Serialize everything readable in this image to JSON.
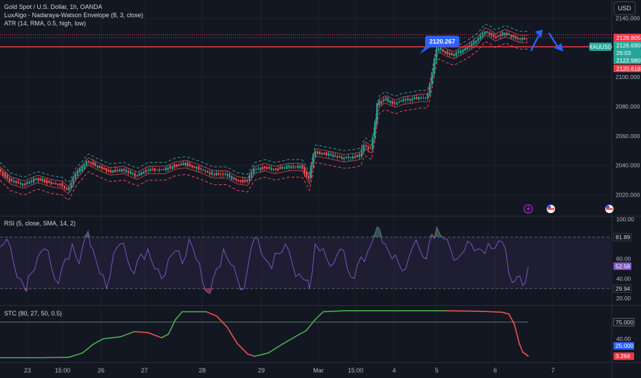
{
  "colors": {
    "background": "#131722",
    "grid": "#1e222d",
    "axis_text": "#b2b5be",
    "up": "#26a69a",
    "down": "#ef5350",
    "envelope_upper": "#26a69a",
    "envelope_lower": "#ef5350",
    "atr_band": "#ef5350",
    "rsi_line": "#7e57c2",
    "stc_up": "#4caf50",
    "stc_down": "#ef5350",
    "arrow": "#2962ff"
  },
  "header": {
    "title": "Gold Spot / U.S. Dollar, 1h, OANDA",
    "indicator_1": "LuxAlgo - Nadaraya-Watson Envelope (8, 3, close)",
    "indicator_2": "ATR (14, RMA, 0.5, high, low)"
  },
  "currency_button": "USD",
  "chart_data": [
    {
      "type": "candlestick",
      "symbol": "XAUUSD",
      "yaxis": {
        "min": 2010,
        "max": 2150,
        "ticks": [
          2020,
          2040,
          2060,
          2080,
          2100,
          2120,
          2140
        ],
        "tick_labels": [
          "2020.000",
          "2040.000",
          "2060.000",
          "2080.000",
          "2100.000",
          "2120.000",
          "2140.000"
        ]
      },
      "price_labels": [
        {
          "label": "2128.805",
          "value": 2128.805,
          "kind": "upper"
        },
        {
          "label": "2126.690",
          "value": 2126.69,
          "kind": "last"
        },
        {
          "label": "26:03",
          "value": 2124.2,
          "kind": "countdown"
        },
        {
          "label": "2122.980",
          "value": 2122.98,
          "kind": "lower"
        },
        {
          "label": "2120.618",
          "value": 2120.618,
          "kind": "line"
        }
      ],
      "symbol_tag": "XAUUSD",
      "horizontal_line": 2120.618,
      "annotation": {
        "text": "2120.267",
        "value": 2120.267
      },
      "path": [
        [
          0,
          2037
        ],
        [
          15,
          2030
        ],
        [
          35,
          2027
        ],
        [
          55,
          2031
        ],
        [
          75,
          2028
        ],
        [
          90,
          2027
        ],
        [
          100,
          2023
        ],
        [
          110,
          2033
        ],
        [
          120,
          2038
        ],
        [
          128,
          2043
        ],
        [
          140,
          2040
        ],
        [
          160,
          2036
        ],
        [
          180,
          2037
        ],
        [
          200,
          2033
        ],
        [
          215,
          2037
        ],
        [
          240,
          2037
        ],
        [
          255,
          2040
        ],
        [
          270,
          2041
        ],
        [
          290,
          2038
        ],
        [
          310,
          2034
        ],
        [
          330,
          2034
        ],
        [
          345,
          2030
        ],
        [
          360,
          2029
        ],
        [
          370,
          2037
        ],
        [
          385,
          2039
        ],
        [
          400,
          2037
        ],
        [
          420,
          2039
        ],
        [
          440,
          2039
        ],
        [
          450,
          2030
        ],
        [
          458,
          2049
        ],
        [
          470,
          2048
        ],
        [
          480,
          2047
        ],
        [
          500,
          2045
        ],
        [
          518,
          2046
        ],
        [
          525,
          2047
        ],
        [
          530,
          2054
        ],
        [
          540,
          2051
        ],
        [
          545,
          2062
        ],
        [
          550,
          2082
        ],
        [
          560,
          2085
        ],
        [
          575,
          2082
        ],
        [
          585,
          2084
        ],
        [
          600,
          2085
        ],
        [
          612,
          2086
        ],
        [
          622,
          2086
        ],
        [
          628,
          2098
        ],
        [
          633,
          2112
        ],
        [
          637,
          2120
        ],
        [
          648,
          2117
        ],
        [
          660,
          2115
        ],
        [
          680,
          2120
        ],
        [
          695,
          2125
        ],
        [
          705,
          2131
        ],
        [
          712,
          2130
        ],
        [
          720,
          2127
        ],
        [
          735,
          2130
        ],
        [
          745,
          2128
        ],
        [
          755,
          2126
        ],
        [
          768,
          2126
        ]
      ]
    },
    {
      "type": "line",
      "name": "RSI (5, close, SMA, 14, 2)",
      "yaxis": {
        "min": 16,
        "max": 102,
        "ticks": [
          20,
          40,
          60,
          100
        ],
        "tick_labels": [
          "20.00",
          "40.00",
          "60.00",
          "100.00"
        ]
      },
      "levels": [
        29.94,
        81.89
      ],
      "value_labels": [
        {
          "label": "81.89",
          "value": 81.89
        },
        {
          "label": "52.58",
          "value": 52.58,
          "kind": "last"
        },
        {
          "label": "29.94",
          "value": 29.94
        }
      ],
      "x": [
        0,
        10,
        20,
        30,
        38,
        45,
        55,
        65,
        75,
        85,
        95,
        105,
        115,
        128,
        135,
        145,
        155,
        165,
        175,
        185,
        195,
        205,
        215,
        225,
        235,
        245,
        255,
        265,
        275,
        285,
        295,
        305,
        315,
        325,
        335,
        345,
        355,
        365,
        375,
        385,
        395,
        405,
        415,
        425,
        435,
        445,
        450,
        458,
        465,
        475,
        485,
        495,
        505,
        515,
        525,
        535,
        545,
        552,
        560,
        570,
        580,
        590,
        600,
        610,
        620,
        628,
        635,
        645,
        655,
        665,
        675,
        685,
        695,
        705,
        715,
        725,
        735,
        745,
        752,
        760,
        768
      ],
      "values": [
        72,
        80,
        55,
        40,
        27,
        45,
        62,
        70,
        50,
        35,
        60,
        75,
        55,
        88,
        70,
        45,
        30,
        65,
        75,
        60,
        45,
        65,
        70,
        50,
        40,
        60,
        68,
        55,
        80,
        60,
        35,
        25,
        50,
        70,
        55,
        40,
        30,
        70,
        80,
        60,
        50,
        65,
        75,
        55,
        45,
        38,
        30,
        75,
        68,
        60,
        55,
        70,
        50,
        40,
        62,
        68,
        85,
        90,
        75,
        60,
        55,
        50,
        72,
        70,
        60,
        85,
        92,
        80,
        70,
        60,
        68,
        75,
        70,
        65,
        70,
        78,
        70,
        36,
        42,
        33,
        52.58
      ]
    },
    {
      "type": "line",
      "name": "STC (80, 27, 50, 0.5)",
      "yaxis": {
        "min": -8,
        "max": 108,
        "ticks": [
          40
        ],
        "tick_labels": [
          "40.00"
        ]
      },
      "level": 75,
      "value_labels": [
        {
          "label": "75.000",
          "value": 75
        },
        {
          "label": "25.000",
          "value": 25
        },
        {
          "label": "3.264",
          "value": 3.264,
          "kind": "last"
        }
      ],
      "x": [
        0,
        60,
        100,
        120,
        135,
        150,
        175,
        195,
        215,
        235,
        245,
        255,
        265,
        300,
        315,
        330,
        345,
        360,
        370,
        390,
        410,
        430,
        445,
        458,
        470,
        500,
        550,
        600,
        650,
        700,
        730,
        740,
        748,
        755,
        760,
        768
      ],
      "values": [
        0,
        0,
        1,
        10,
        28,
        40,
        44,
        55,
        53,
        42,
        50,
        80,
        97,
        97,
        88,
        65,
        30,
        8,
        3,
        10,
        28,
        45,
        57,
        80,
        97,
        99,
        99,
        99,
        99,
        98,
        96,
        92,
        70,
        30,
        12,
        3.264
      ]
    }
  ],
  "x_axis": {
    "labels": [
      {
        "text": "23",
        "x": 40
      },
      {
        "text": "15:00",
        "x": 91
      },
      {
        "text": "26",
        "x": 147
      },
      {
        "text": "27",
        "x": 210
      },
      {
        "text": "28",
        "x": 294
      },
      {
        "text": "29",
        "x": 380
      },
      {
        "text": "Mar",
        "x": 463
      },
      {
        "text": "15:00",
        "x": 517
      },
      {
        "text": "4",
        "x": 573
      },
      {
        "text": "5",
        "x": 635
      },
      {
        "text": "6",
        "x": 720
      },
      {
        "text": "7",
        "x": 804
      }
    ]
  }
}
